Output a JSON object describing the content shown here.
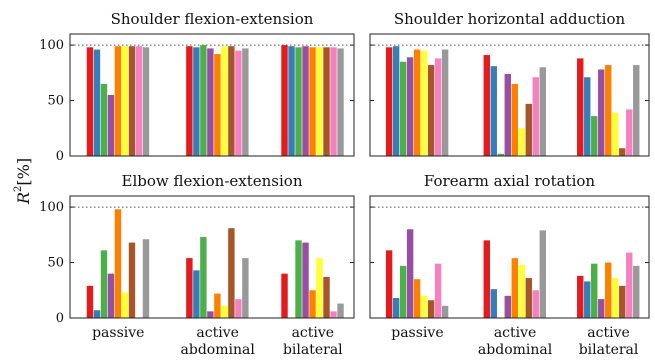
{
  "ylabel": "R²[%]",
  "ylabel_parts": {
    "sym": "R",
    "sup": "2",
    "unit": "[%]"
  },
  "colors": [
    "#e41a1c",
    "#377eb8",
    "#4daf4a",
    "#984ea3",
    "#ff7f00",
    "#ffff33",
    "#a65628",
    "#f781bf",
    "#999999"
  ],
  "chart_data": [
    {
      "type": "bar",
      "title": "Shoulder flexion-extension",
      "categories": [
        "passive",
        "active|abdominal",
        "active|bilateral"
      ],
      "ylim": [
        0,
        110
      ],
      "yticks": [
        0,
        50,
        100
      ],
      "ref_line": 100,
      "series": [
        {
          "values": [
            98,
            99,
            100
          ]
        },
        {
          "values": [
            96,
            98,
            99
          ]
        },
        {
          "values": [
            65,
            100,
            98
          ]
        },
        {
          "values": [
            55,
            97,
            99
          ]
        },
        {
          "values": [
            99,
            92,
            98
          ]
        },
        {
          "values": [
            99,
            99,
            98
          ]
        },
        {
          "values": [
            99,
            99,
            98
          ]
        },
        {
          "values": [
            99,
            95,
            98
          ]
        },
        {
          "values": [
            98,
            97,
            97
          ]
        }
      ]
    },
    {
      "type": "bar",
      "title": "Shoulder horizontal adduction",
      "categories": [
        "passive",
        "active|abdominal",
        "active|bilateral"
      ],
      "ylim": [
        0,
        110
      ],
      "yticks": [
        0,
        50,
        100
      ],
      "ref_line": 100,
      "series": [
        {
          "values": [
            98,
            91,
            88
          ]
        },
        {
          "values": [
            99,
            81,
            71
          ]
        },
        {
          "values": [
            85,
            2,
            36
          ]
        },
        {
          "values": [
            89,
            74,
            78
          ]
        },
        {
          "values": [
            96,
            65,
            82
          ]
        },
        {
          "values": [
            95,
            25,
            39
          ]
        },
        {
          "values": [
            82,
            47,
            7
          ]
        },
        {
          "values": [
            88,
            71,
            42
          ]
        },
        {
          "values": [
            96,
            80,
            82
          ]
        }
      ]
    },
    {
      "type": "bar",
      "title": "Elbow flexion-extension",
      "categories": [
        "passive",
        "active|abdominal",
        "active|bilateral"
      ],
      "ylim": [
        0,
        110
      ],
      "yticks": [
        0,
        50,
        100
      ],
      "ref_line": 100,
      "series": [
        {
          "values": [
            29,
            54,
            40
          ]
        },
        {
          "values": [
            7,
            43,
            0
          ]
        },
        {
          "values": [
            61,
            73,
            70
          ]
        },
        {
          "values": [
            40,
            6,
            68
          ]
        },
        {
          "values": [
            98,
            22,
            25
          ]
        },
        {
          "values": [
            23,
            11,
            54
          ]
        },
        {
          "values": [
            68,
            81,
            37
          ]
        },
        {
          "values": [
            0,
            17,
            6
          ]
        },
        {
          "values": [
            71,
            54,
            13
          ]
        }
      ]
    },
    {
      "type": "bar",
      "title": "Forearm axial rotation",
      "categories": [
        "passive",
        "active|abdominal",
        "active|bilateral"
      ],
      "ylim": [
        0,
        110
      ],
      "yticks": [
        0,
        50,
        100
      ],
      "ref_line": 100,
      "series": [
        {
          "values": [
            61,
            70,
            38
          ]
        },
        {
          "values": [
            18,
            26,
            33
          ]
        },
        {
          "values": [
            47,
            0,
            49
          ]
        },
        {
          "values": [
            80,
            20,
            17
          ]
        },
        {
          "values": [
            35,
            54,
            50
          ]
        },
        {
          "values": [
            20,
            48,
            36
          ]
        },
        {
          "values": [
            16,
            36,
            29
          ]
        },
        {
          "values": [
            49,
            25,
            59
          ]
        },
        {
          "values": [
            11,
            79,
            47
          ]
        }
      ]
    }
  ]
}
